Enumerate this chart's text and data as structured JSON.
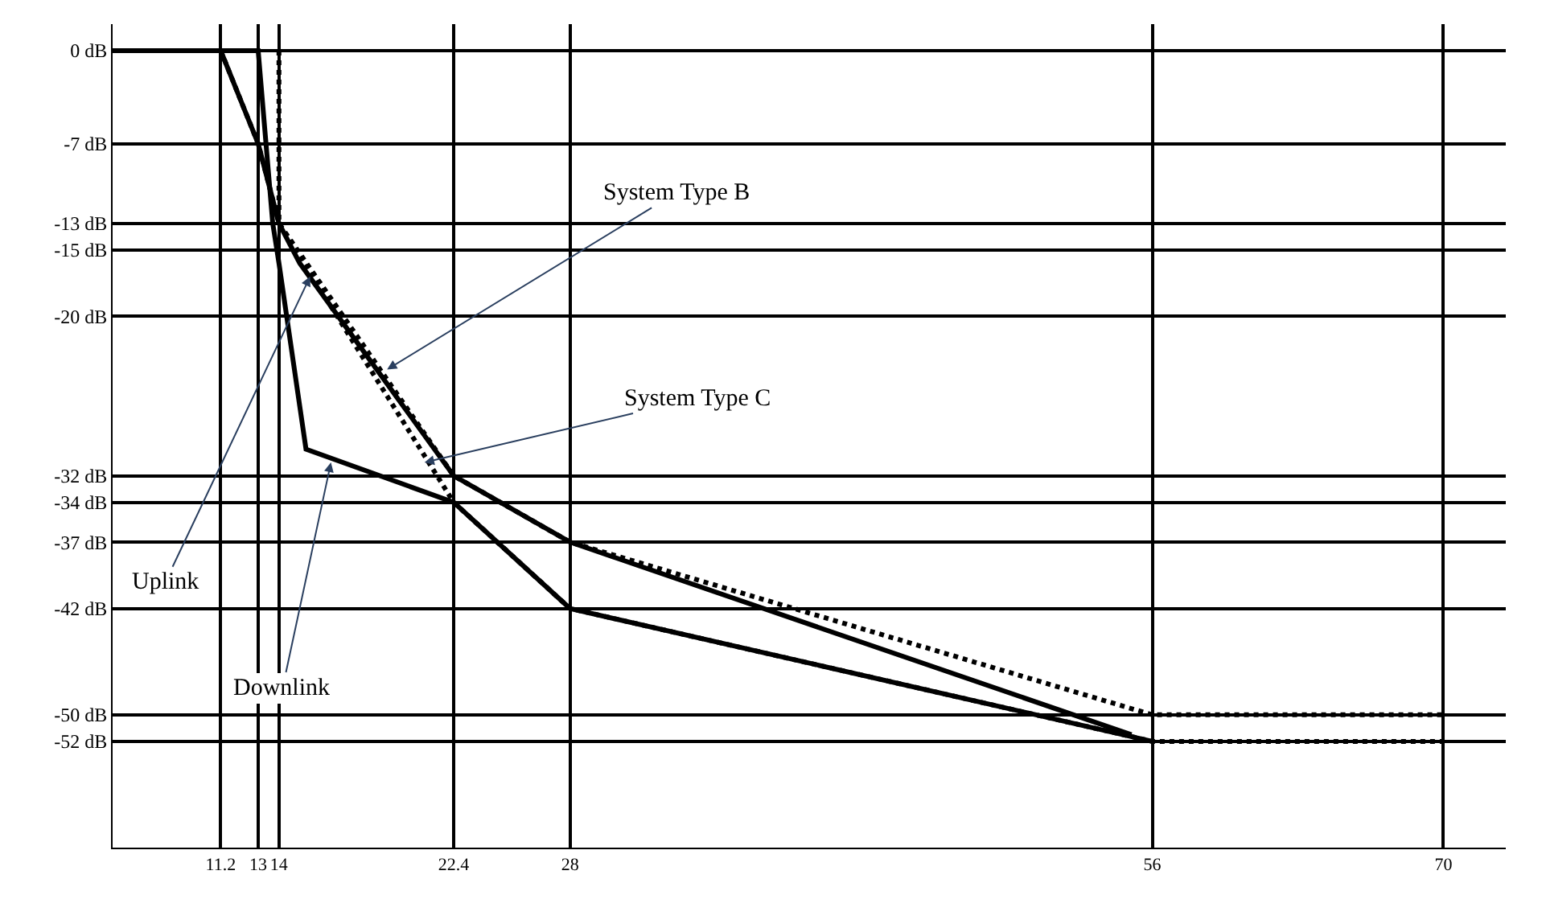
{
  "chart_data": {
    "type": "line",
    "xlim": [
      6,
      73
    ],
    "ylim": [
      -60,
      2
    ],
    "xticks": [
      11.2,
      13,
      14,
      22.4,
      28,
      56,
      70
    ],
    "yticks": [
      {
        "value": 0,
        "label": "0 dB"
      },
      {
        "value": -7,
        "label": "-7 dB"
      },
      {
        "value": -13,
        "label": "-13 dB"
      },
      {
        "value": -15,
        "label": "-15 dB"
      },
      {
        "value": -20,
        "label": "-20 dB"
      },
      {
        "value": -32,
        "label": "-32 dB"
      },
      {
        "value": -34,
        "label": "-34 dB"
      },
      {
        "value": -37,
        "label": "-37 dB"
      },
      {
        "value": -42,
        "label": "-42 dB"
      },
      {
        "value": -50,
        "label": "-50 dB"
      },
      {
        "value": -52,
        "label": "-52 dB"
      }
    ],
    "grid": true,
    "marker": "none",
    "series": [
      {
        "color": "#000000",
        "line_style": "solid",
        "x": [
          6,
          11.2,
          13,
          14,
          15,
          22.4,
          28,
          55
        ],
        "values": [
          0,
          0,
          -7,
          -13,
          -16,
          -32,
          -37,
          -51.5
        ]
      },
      {
        "color": "#000000",
        "line_style": "solid",
        "x": [
          6,
          13,
          13.7,
          14,
          15.3,
          22.4,
          28,
          56
        ],
        "values": [
          0,
          0,
          -13,
          -16,
          -30,
          -34,
          -42,
          -52
        ]
      },
      {
        "color": "#000000",
        "line_style": "dotted",
        "x": [
          14,
          14,
          22.4,
          28,
          56,
          70
        ],
        "values": [
          0,
          -13,
          -32,
          -37,
          -50,
          -50
        ]
      },
      {
        "color": "#000000",
        "line_style": "dotted",
        "x": [
          11.2,
          13,
          14,
          22.4,
          28,
          56,
          70
        ],
        "values": [
          0,
          -7,
          -13,
          -34,
          -42,
          -52,
          -52
        ]
      }
    ],
    "annotations": [
      {
        "text": "System Type B",
        "x": 19.2,
        "y": -24
      },
      {
        "text": "System Type C",
        "x": 21,
        "y": -31
      },
      {
        "text": "Uplink",
        "x": 15.5,
        "y": -17
      },
      {
        "text": "Downlink",
        "x": 16.5,
        "y": -31
      }
    ]
  }
}
